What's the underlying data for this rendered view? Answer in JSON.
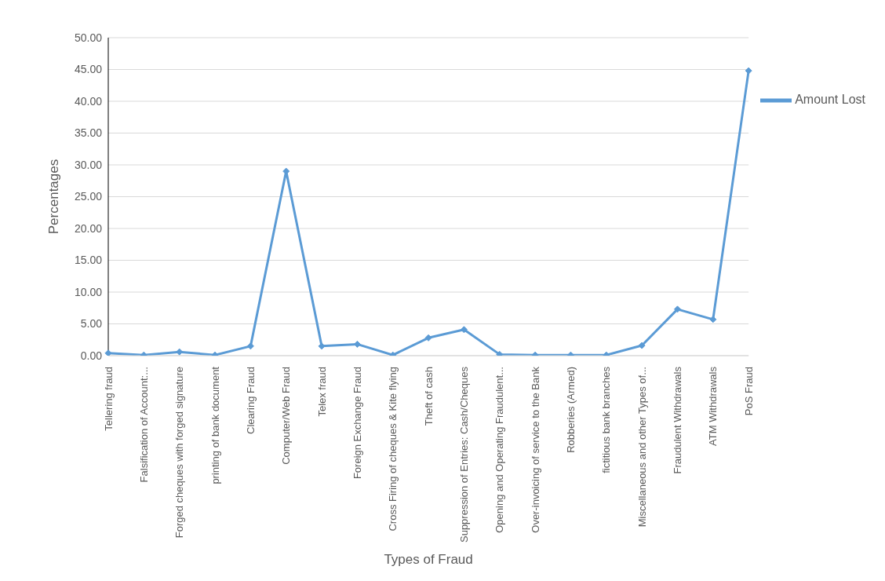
{
  "chart_data": {
    "type": "line",
    "xlabel": "Types of Fraud",
    "ylabel": "Percentages",
    "categories": [
      "Tellering fraud",
      "Falsification of Account:...",
      "Forged cheques with forged signature",
      "printing of bank document",
      "Clearing Fraud",
      "Computer/Web Fraud",
      "Telex fraud",
      "Foreign Exchange Fraud",
      "Cross Firing of cheques & Kite flying",
      "Theft of cash",
      "Suppression of Entries: Cash/Cheques",
      "Opening and Operating Fraudulent...",
      "Over-invoicing of service to the Bank",
      "Robberies (Armed)",
      "fictitious bank branches",
      "Miscellaneous and other Types of...",
      "Fraudulent Withdrawals",
      "ATM Withdrawals",
      "PoS Fraud"
    ],
    "series": [
      {
        "name": "Amount Lost",
        "color": "#5b9bd5",
        "values": [
          0.4,
          0.1,
          0.6,
          0.1,
          1.5,
          29.0,
          1.5,
          1.8,
          0.1,
          2.8,
          4.1,
          0.2,
          0.1,
          0.1,
          0.1,
          1.6,
          7.3,
          5.7,
          44.8
        ]
      }
    ],
    "ylim": [
      0,
      50
    ],
    "yticks": [
      {
        "value": 0,
        "label": "0.00"
      },
      {
        "value": 5,
        "label": "5.00"
      },
      {
        "value": 10,
        "label": "10.00"
      },
      {
        "value": 15,
        "label": "15.00"
      },
      {
        "value": 20,
        "label": "20.00"
      },
      {
        "value": 25,
        "label": "25.00"
      },
      {
        "value": 30,
        "label": "30.00"
      },
      {
        "value": 35,
        "label": "35.00"
      },
      {
        "value": 40,
        "label": "40.00"
      },
      {
        "value": 45,
        "label": "45.00"
      },
      {
        "value": 50,
        "label": "50.00"
      }
    ],
    "grid": "y",
    "legend": "top right",
    "marker": "diamond",
    "line_style": "solid"
  }
}
